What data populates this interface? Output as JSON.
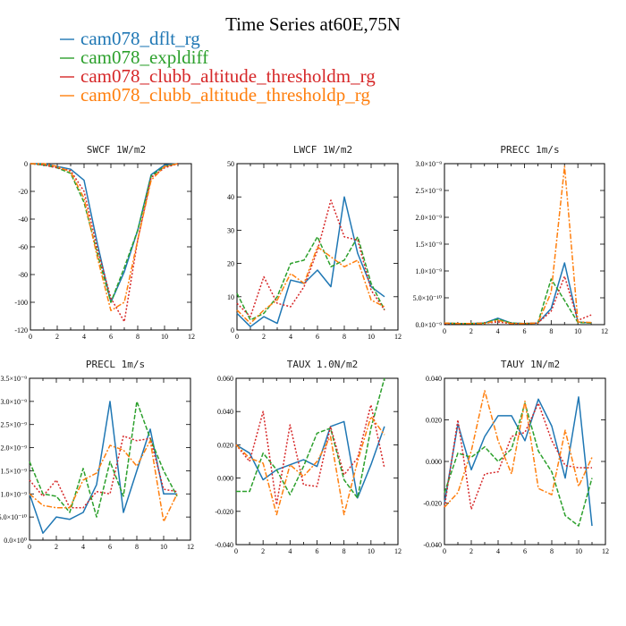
{
  "title": "Time Series at60E,75N",
  "legend": [
    {
      "label": "cam078_dflt_rg",
      "color": "#1f77b4"
    },
    {
      "label": "cam078_expldiff",
      "color": "#2ca02c"
    },
    {
      "label": "cam078_clubb_altitude_thresholdm_rg",
      "color": "#d62728"
    },
    {
      "label": "cam078_clubb_altitude_thresholdp_rg",
      "color": "#ff7f0e"
    }
  ],
  "chart_data": [
    {
      "type": "line",
      "title": "SWCF   1W/m2",
      "x": [
        0,
        1,
        2,
        3,
        4,
        5,
        6,
        7,
        8,
        9,
        10,
        11
      ],
      "xlim": [
        0,
        12
      ],
      "xticks": [
        0,
        2,
        4,
        6,
        8,
        10,
        12
      ],
      "ylim": [
        -120,
        0
      ],
      "yticks": [
        -120,
        -100,
        -80,
        -60,
        -40,
        -20,
        0
      ],
      "ytick_labels": [
        "-120",
        "-100",
        "-80",
        "-60",
        "-40",
        "-20",
        "0"
      ],
      "series": [
        {
          "name": "cam078_dflt_rg",
          "values": [
            0,
            0,
            -2,
            -4,
            -12,
            -58,
            -100,
            -78,
            -48,
            -8,
            -1,
            0
          ]
        },
        {
          "name": "cam078_expldiff",
          "values": [
            0,
            -1,
            -3,
            -7,
            -28,
            -65,
            -100,
            -75,
            -48,
            -9,
            -2,
            0
          ]
        },
        {
          "name": "cam078_clubb_altitude_thresholdm_rg",
          "values": [
            0,
            -1,
            -3,
            -5,
            -20,
            -62,
            -97,
            -114,
            -55,
            -10,
            -3,
            0
          ]
        },
        {
          "name": "cam078_clubb_altitude_thresholdp_rg",
          "values": [
            0,
            0,
            -2,
            -6,
            -25,
            -68,
            -106,
            -100,
            -55,
            -12,
            -2,
            0
          ]
        }
      ]
    },
    {
      "type": "line",
      "title": "LWCF   1W/m2",
      "x": [
        0,
        1,
        2,
        3,
        4,
        5,
        6,
        7,
        8,
        9,
        10,
        11
      ],
      "xlim": [
        0,
        12
      ],
      "xticks": [
        0,
        2,
        4,
        6,
        8,
        10,
        12
      ],
      "ylim": [
        0,
        50
      ],
      "yticks": [
        0,
        10,
        20,
        30,
        40,
        50
      ],
      "ytick_labels": [
        "0",
        "10",
        "20",
        "30",
        "40",
        "50"
      ],
      "series": [
        {
          "name": "cam078_dflt_rg",
          "values": [
            5,
            1,
            4,
            2,
            15,
            14,
            18,
            13,
            40,
            23,
            13,
            10
          ]
        },
        {
          "name": "cam078_expldiff",
          "values": [
            11,
            3,
            5,
            10,
            20,
            21,
            28,
            19,
            21,
            28,
            14,
            6
          ]
        },
        {
          "name": "cam078_clubb_altitude_thresholdm_rg",
          "values": [
            8,
            4,
            16,
            8,
            7,
            13,
            24,
            39,
            28,
            27,
            12,
            6
          ]
        },
        {
          "name": "cam078_clubb_altitude_thresholdp_rg",
          "values": [
            6,
            2,
            6,
            9,
            17,
            14,
            25,
            22,
            19,
            21,
            9,
            7
          ]
        }
      ]
    },
    {
      "type": "line",
      "title": "PRECC   1m/s",
      "x": [
        0,
        1,
        2,
        3,
        4,
        5,
        6,
        7,
        8,
        9,
        10,
        11
      ],
      "xlim": [
        0,
        12
      ],
      "xticks": [
        0,
        2,
        4,
        6,
        8,
        10,
        12
      ],
      "ylim": [
        0,
        3.0
      ],
      "yticks": [
        0,
        0.5,
        1.0,
        1.5,
        2.0,
        2.5,
        3.0
      ],
      "ytick_labels": [
        "0.0×10⁻⁹",
        "5.0×10⁻¹⁰",
        "1.0×10⁻⁹",
        "1.5×10⁻⁹",
        "2.0×10⁻⁹",
        "2.5×10⁻⁹",
        "3.0×10⁻⁹"
      ],
      "series": [
        {
          "name": "cam078_dflt_rg",
          "values": [
            0.03,
            0.02,
            0.02,
            0.03,
            0.12,
            0.03,
            0.02,
            0.03,
            0.3,
            1.15,
            0.05,
            0.03
          ]
        },
        {
          "name": "cam078_expldiff",
          "values": [
            0.03,
            0.02,
            0.02,
            0.03,
            0.1,
            0.03,
            0.02,
            0.03,
            0.85,
            0.45,
            0.04,
            0.03
          ]
        },
        {
          "name": "cam078_clubb_altitude_thresholdm_rg",
          "values": [
            0.02,
            0.02,
            0.02,
            0.03,
            0.05,
            0.02,
            0.02,
            0.03,
            0.25,
            0.9,
            0.08,
            0.18
          ]
        },
        {
          "name": "cam078_clubb_altitude_thresholdp_rg",
          "values": [
            0.03,
            0.02,
            0.02,
            0.02,
            0.08,
            0.02,
            0.02,
            0.03,
            0.6,
            2.95,
            0.05,
            0.04
          ]
        }
      ]
    },
    {
      "type": "line",
      "title": "PRECL   1m/s",
      "x": [
        0,
        1,
        2,
        3,
        4,
        5,
        6,
        7,
        8,
        9,
        10,
        11
      ],
      "xlim": [
        0,
        12
      ],
      "xticks": [
        0,
        2,
        4,
        6,
        8,
        10,
        12
      ],
      "ylim": [
        0,
        3.5
      ],
      "yticks": [
        0,
        0.5,
        1.0,
        1.5,
        2.0,
        2.5,
        3.0,
        3.5
      ],
      "ytick_labels": [
        "0.0×10⁰",
        "5.0×10⁻¹⁰",
        "1.0×10⁻⁹",
        "1.5×10⁻⁹",
        "2.0×10⁻⁹",
        "2.5×10⁻⁹",
        "3.0×10⁻⁹",
        "3.5×10⁻⁹"
      ],
      "series": [
        {
          "name": "cam078_dflt_rg",
          "values": [
            1.0,
            0.15,
            0.5,
            0.45,
            0.6,
            1.2,
            3.0,
            0.6,
            1.5,
            2.4,
            1.0,
            1.0
          ]
        },
        {
          "name": "cam078_expldiff",
          "values": [
            1.7,
            1.0,
            0.95,
            0.6,
            1.55,
            0.5,
            1.7,
            0.95,
            3.0,
            2.2,
            1.5,
            0.95
          ]
        },
        {
          "name": "cam078_clubb_altitude_thresholdm_rg",
          "values": [
            1.3,
            0.95,
            1.3,
            0.7,
            0.7,
            1.05,
            1.0,
            2.25,
            2.15,
            2.2,
            1.1,
            1.05
          ]
        },
        {
          "name": "cam078_clubb_altitude_thresholdp_rg",
          "values": [
            1.0,
            0.75,
            0.7,
            0.7,
            1.3,
            1.45,
            2.05,
            1.95,
            1.6,
            2.15,
            0.4,
            1.0
          ]
        }
      ]
    },
    {
      "type": "line",
      "title": "TAUX   1.0N/m2",
      "x": [
        0,
        1,
        2,
        3,
        4,
        5,
        6,
        7,
        8,
        9,
        10,
        11
      ],
      "xlim": [
        0,
        12
      ],
      "xticks": [
        0,
        2,
        4,
        6,
        8,
        10,
        12
      ],
      "ylim": [
        -0.04,
        0.06
      ],
      "yticks": [
        -0.04,
        -0.02,
        0,
        0.02,
        0.04,
        0.06
      ],
      "ytick_labels": [
        "-0.040",
        "-0.020",
        "0.000",
        "0.020",
        "0.040",
        "0.060"
      ],
      "series": [
        {
          "name": "cam078_dflt_rg",
          "values": [
            0.02,
            0.015,
            -0.001,
            0.005,
            0.008,
            0.011,
            0.007,
            0.031,
            0.034,
            -0.012,
            0.008,
            0.031
          ]
        },
        {
          "name": "cam078_expldiff",
          "values": [
            -0.008,
            -0.008,
            0.015,
            0.005,
            -0.01,
            0.007,
            0.027,
            0.03,
            -0.001,
            -0.012,
            0.03,
            0.06
          ]
        },
        {
          "name": "cam078_clubb_altitude_thresholdm_rg",
          "values": [
            0.02,
            0.01,
            0.04,
            -0.016,
            0.032,
            -0.004,
            -0.005,
            0.031,
            0.002,
            0.012,
            0.044,
            0.006
          ]
        },
        {
          "name": "cam078_clubb_altitude_thresholdp_rg",
          "values": [
            0.02,
            0.012,
            0.009,
            -0.022,
            0.008,
            0.001,
            0.01,
            0.025,
            -0.022,
            0.01,
            0.037,
            0.026
          ]
        }
      ]
    },
    {
      "type": "line",
      "title": "TAUY   1N/m2",
      "x": [
        0,
        1,
        2,
        3,
        4,
        5,
        6,
        7,
        8,
        9,
        10,
        11
      ],
      "xlim": [
        0,
        12
      ],
      "xticks": [
        0,
        2,
        4,
        6,
        8,
        10,
        12
      ],
      "ylim": [
        -0.04,
        0.04
      ],
      "yticks": [
        -0.04,
        -0.02,
        0,
        0.02,
        0.04
      ],
      "ytick_labels": [
        "-0.040",
        "-0.020",
        "0.000",
        "0.020",
        "0.040"
      ],
      "series": [
        {
          "name": "cam078_dflt_rg",
          "values": [
            -0.02,
            0.018,
            -0.004,
            0.012,
            0.022,
            0.022,
            0.01,
            0.03,
            0.017,
            -0.008,
            0.031,
            -0.031
          ]
        },
        {
          "name": "cam078_expldiff",
          "values": [
            -0.015,
            0.004,
            0.002,
            0.007,
            0.0,
            0.006,
            0.028,
            0.005,
            -0.005,
            -0.026,
            -0.031,
            -0.008
          ]
        },
        {
          "name": "cam078_clubb_altitude_thresholdm_rg",
          "values": [
            -0.022,
            0.02,
            -0.023,
            -0.006,
            -0.005,
            0.012,
            0.014,
            0.028,
            0.01,
            -0.002,
            -0.003,
            -0.003
          ]
        },
        {
          "name": "cam078_clubb_altitude_thresholdp_rg",
          "values": [
            -0.022,
            -0.015,
            0.005,
            0.034,
            0.01,
            -0.006,
            0.029,
            -0.013,
            -0.016,
            0.015,
            -0.012,
            0.002
          ]
        }
      ]
    }
  ]
}
